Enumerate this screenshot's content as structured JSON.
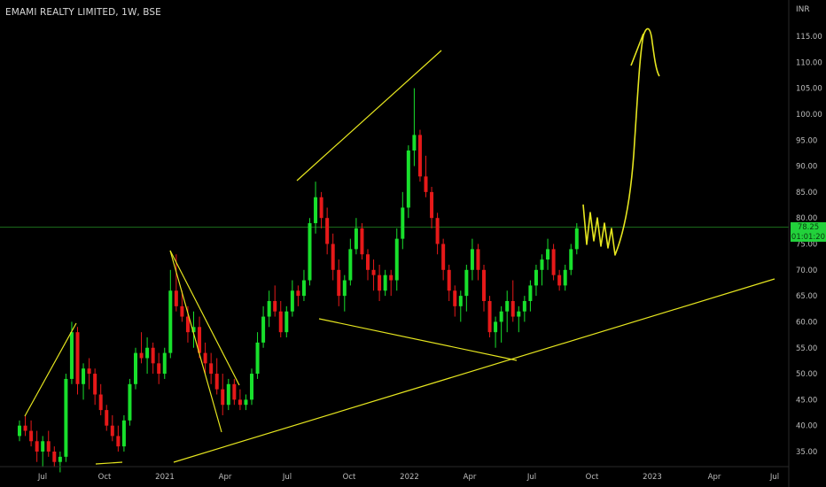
{
  "header": {
    "title": "EMAMI REALTY LIMITED, 1W, BSE",
    "unit": "INR"
  },
  "price_tag": {
    "price": "78.25",
    "countdown": "01:01:20"
  },
  "colors": {
    "up": "#18e02c",
    "down": "#e61919",
    "drawing": "#e6e61f",
    "last_price_line": "#1f7a1f"
  },
  "chart_data": {
    "type": "candlestick",
    "y_ticks": [
      "115.00",
      "110.00",
      "105.00",
      "100.00",
      "95.00",
      "90.00",
      "85.00",
      "80.00",
      "75.00",
      "70.00",
      "65.00",
      "60.00",
      "55.00",
      "50.00",
      "45.00",
      "40.00",
      "35.00"
    ],
    "x_ticks": [
      "Jul",
      "Oct",
      "2021",
      "Apr",
      "Jul",
      "Oct",
      "2022",
      "Apr",
      "Jul",
      "Oct",
      "2023",
      "Apr",
      "Jul"
    ],
    "ylim": [
      32,
      121
    ],
    "last_price": 78.25,
    "candles": [
      [
        38,
        41,
        37,
        40
      ],
      [
        40,
        42,
        38,
        39
      ],
      [
        39,
        41,
        36,
        37
      ],
      [
        37,
        39,
        33,
        35
      ],
      [
        35,
        38,
        32,
        37
      ],
      [
        37,
        39,
        34,
        35
      ],
      [
        35,
        36,
        32,
        33
      ],
      [
        33,
        35,
        31,
        34
      ],
      [
        34,
        50,
        33,
        49
      ],
      [
        49,
        60,
        48,
        58
      ],
      [
        58,
        59,
        46,
        48
      ],
      [
        48,
        52,
        45,
        51
      ],
      [
        51,
        53,
        47,
        50
      ],
      [
        50,
        51,
        44,
        46
      ],
      [
        46,
        48,
        42,
        43
      ],
      [
        43,
        44,
        39,
        40
      ],
      [
        40,
        42,
        37,
        38
      ],
      [
        38,
        40,
        35,
        36
      ],
      [
        36,
        42,
        35,
        41
      ],
      [
        41,
        49,
        40,
        48
      ],
      [
        48,
        55,
        47,
        54
      ],
      [
        54,
        58,
        52,
        53
      ],
      [
        53,
        57,
        50,
        55
      ],
      [
        55,
        56,
        50,
        52
      ],
      [
        52,
        54,
        48,
        50
      ],
      [
        50,
        55,
        49,
        54
      ],
      [
        54,
        70,
        53,
        66
      ],
      [
        66,
        73,
        62,
        63
      ],
      [
        63,
        66,
        60,
        61
      ],
      [
        61,
        63,
        56,
        58
      ],
      [
        58,
        62,
        55,
        59
      ],
      [
        59,
        61,
        53,
        54
      ],
      [
        54,
        56,
        50,
        52
      ],
      [
        52,
        54,
        48,
        50
      ],
      [
        50,
        53,
        46,
        47
      ],
      [
        47,
        50,
        42,
        44
      ],
      [
        44,
        49,
        43,
        48
      ],
      [
        48,
        49,
        44,
        45
      ],
      [
        45,
        47,
        43,
        44
      ],
      [
        44,
        46,
        43,
        45
      ],
      [
        45,
        51,
        44,
        50
      ],
      [
        50,
        58,
        49,
        56
      ],
      [
        56,
        63,
        55,
        61
      ],
      [
        61,
        66,
        59,
        64
      ],
      [
        64,
        67,
        61,
        62
      ],
      [
        62,
        64,
        57,
        58
      ],
      [
        58,
        63,
        57,
        62
      ],
      [
        62,
        68,
        61,
        66
      ],
      [
        66,
        67,
        63,
        65
      ],
      [
        65,
        70,
        64,
        68
      ],
      [
        68,
        80,
        67,
        79
      ],
      [
        79,
        87,
        77,
        84
      ],
      [
        84,
        85,
        78,
        80
      ],
      [
        80,
        82,
        73,
        75
      ],
      [
        75,
        77,
        68,
        70
      ],
      [
        70,
        72,
        63,
        65
      ],
      [
        65,
        69,
        62,
        68
      ],
      [
        68,
        76,
        67,
        74
      ],
      [
        74,
        80,
        73,
        78
      ],
      [
        78,
        79,
        72,
        73
      ],
      [
        73,
        74,
        68,
        70
      ],
      [
        70,
        72,
        66,
        69
      ],
      [
        69,
        71,
        64,
        66
      ],
      [
        66,
        70,
        65,
        69
      ],
      [
        69,
        70,
        65,
        68
      ],
      [
        68,
        78,
        66,
        76
      ],
      [
        76,
        85,
        74,
        82
      ],
      [
        82,
        94,
        80,
        93
      ],
      [
        93,
        105,
        90,
        96
      ],
      [
        96,
        97,
        87,
        88
      ],
      [
        88,
        92,
        84,
        85
      ],
      [
        85,
        86,
        78,
        80
      ],
      [
        80,
        81,
        73,
        75
      ],
      [
        75,
        76,
        68,
        70
      ],
      [
        70,
        71,
        64,
        66
      ],
      [
        66,
        67,
        61,
        63
      ],
      [
        63,
        66,
        60,
        65
      ],
      [
        65,
        71,
        62,
        70
      ],
      [
        70,
        76,
        68,
        74
      ],
      [
        74,
        75,
        68,
        70
      ],
      [
        70,
        71,
        62,
        64
      ],
      [
        64,
        65,
        57,
        58
      ],
      [
        58,
        61,
        55,
        60
      ],
      [
        60,
        63,
        56,
        62
      ],
      [
        62,
        66,
        58,
        64
      ],
      [
        64,
        68,
        60,
        61
      ],
      [
        61,
        63,
        58,
        62
      ],
      [
        62,
        65,
        60,
        64
      ],
      [
        64,
        68,
        62,
        67
      ],
      [
        67,
        71,
        65,
        70
      ],
      [
        70,
        73,
        67,
        72
      ],
      [
        72,
        76,
        70,
        74
      ],
      [
        74,
        75,
        68,
        69
      ],
      [
        69,
        70,
        66,
        67
      ],
      [
        67,
        71,
        66,
        70
      ],
      [
        70,
        75,
        69,
        74
      ],
      [
        74,
        79,
        73,
        78
      ]
    ]
  }
}
